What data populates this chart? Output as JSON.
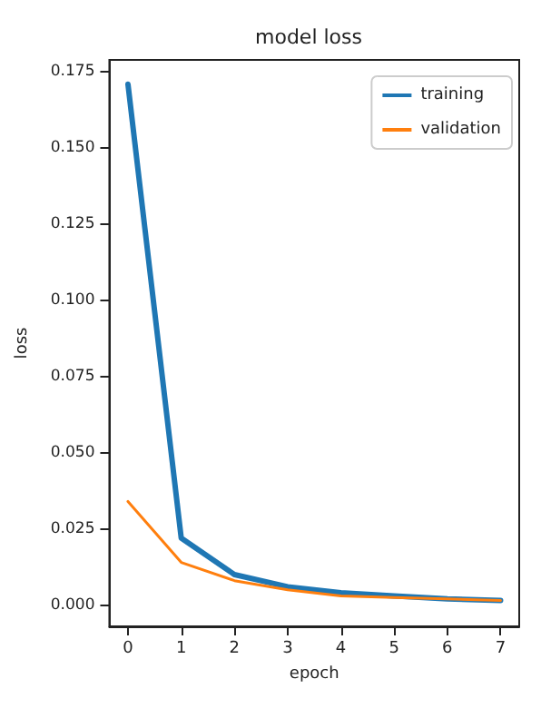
{
  "chart_data": {
    "type": "line",
    "title": "model loss",
    "xlabel": "epoch",
    "ylabel": "loss",
    "x": [
      0,
      1,
      2,
      3,
      4,
      5,
      6,
      7
    ],
    "series": [
      {
        "name": "training",
        "color": "#1f77b4",
        "values": [
          0.171,
          0.022,
          0.01,
          0.006,
          0.004,
          0.003,
          0.002,
          0.0015
        ]
      },
      {
        "name": "validation",
        "color": "#ff7f0e",
        "values": [
          0.034,
          0.014,
          0.008,
          0.005,
          0.003,
          0.0025,
          0.002,
          0.0015
        ]
      }
    ],
    "xlim": [
      -0.35,
      7.35
    ],
    "xticks": [
      0,
      1,
      2,
      3,
      4,
      5,
      6,
      7
    ],
    "ylim": [
      -0.007,
      0.179
    ],
    "yticks": [
      {
        "value": 0,
        "label": "0.000"
      },
      {
        "value": 0.025,
        "label": "0.025"
      },
      {
        "value": 0.05,
        "label": "0.050"
      },
      {
        "value": 0.075,
        "label": "0.075"
      },
      {
        "value": 0.1,
        "label": "0.100"
      },
      {
        "value": 0.125,
        "label": "0.125"
      },
      {
        "value": 0.15,
        "label": "0.150"
      },
      {
        "value": 0.175,
        "label": "0.175"
      }
    ],
    "legend": "top right",
    "marker": "none",
    "line_style": "solid",
    "grid": false
  }
}
